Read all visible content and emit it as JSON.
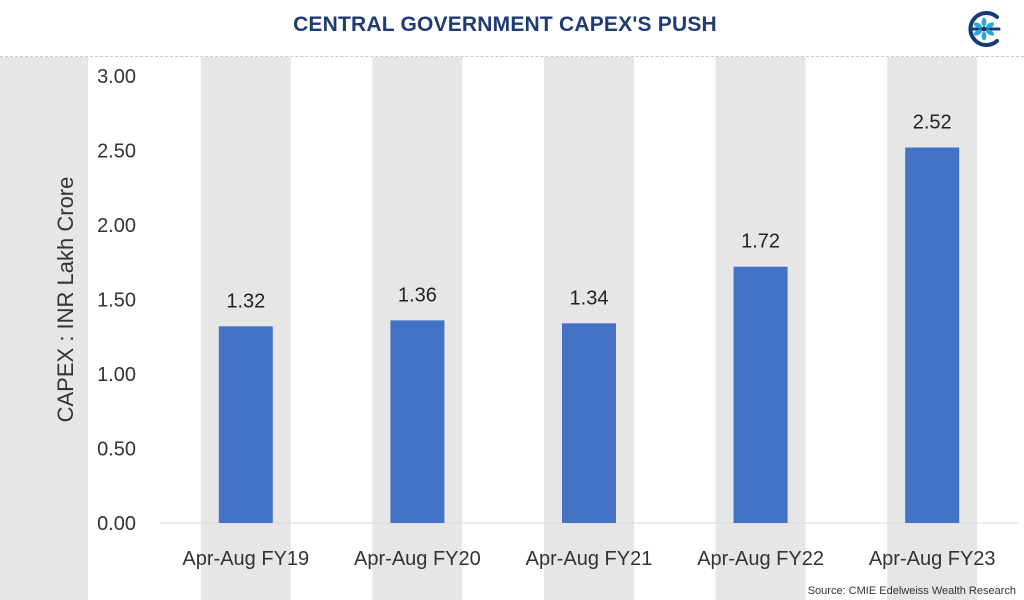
{
  "header": {
    "title": "CENTRAL GOVERNMENT CAPEX'S PUSH",
    "logo_icon": "edelweiss-logo-icon"
  },
  "source": "Source: CMIE Edelweiss Wealth Research",
  "colors": {
    "title": "#1f3b73",
    "bar": "#4472c4",
    "band": "#e6e6e6",
    "axis_text": "#333333",
    "label_text": "#222222",
    "logo": "#173b72",
    "logo_accent": "#2aa7d6"
  },
  "chart_data": {
    "type": "bar",
    "title": "",
    "xlabel": "",
    "ylabel": "CAPEX : INR Lakh Crore",
    "categories": [
      "Apr-Aug FY19",
      "Apr-Aug FY20",
      "Apr-Aug FY21",
      "Apr-Aug FY22",
      "Apr-Aug FY23"
    ],
    "values": [
      1.32,
      1.36,
      1.34,
      1.72,
      2.52
    ],
    "data_labels": [
      "1.32",
      "1.36",
      "1.34",
      "1.72",
      "2.52"
    ],
    "ylim": [
      0,
      3
    ],
    "yticks": [
      0,
      0.5,
      1,
      1.5,
      2,
      2.5,
      3
    ],
    "ytick_labels": [
      "0.00",
      "0.50",
      "1.00",
      "1.50",
      "2.00",
      "2.50",
      "3.00"
    ],
    "grid": false,
    "legend": "none"
  }
}
